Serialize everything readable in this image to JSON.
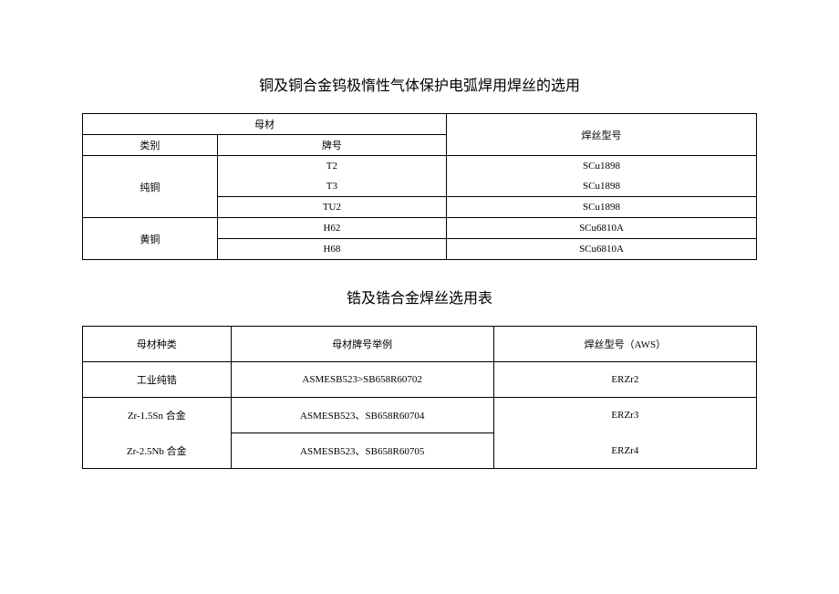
{
  "table1": {
    "title": "铜及铜合金钨极惰性气体保护电弧焊用焊丝的选用",
    "header_parent": "母材",
    "header_category": "类别",
    "header_grade": "牌号",
    "header_wire": "焊丝型号",
    "cat_pure": "纯铜",
    "cat_brass": "黄铜",
    "r1_grade": "T2",
    "r1_wire": "SCu1898",
    "r2_grade": "T3",
    "r2_wire": "SCu1898",
    "r3_grade": "TU2",
    "r3_wire": "SCu1898",
    "r4_grade": "H62",
    "r4_wire": "SCu6810A",
    "r5_grade": "H68",
    "r5_wire": "SCu6810A"
  },
  "table2": {
    "title": "锆及锆合金焊丝选用表",
    "header_type": "母材种类",
    "header_example": "母材牌号举例",
    "header_wire": "焊丝型号（AWS）",
    "r1_type": "工业纯锆",
    "r1_ex": "ASMESB523>SB658R60702",
    "r1_wire": "ERZr2",
    "r2_type": "Zr-1.5Sn 合金",
    "r2_ex": "ASMESB523、SB658R60704",
    "r2_wire": "ERZr3",
    "r3_type": "Zr-2.5Nb 合金",
    "r3_ex": "ASMESB523、SB658R60705",
    "r3_wire": "ERZr4"
  }
}
